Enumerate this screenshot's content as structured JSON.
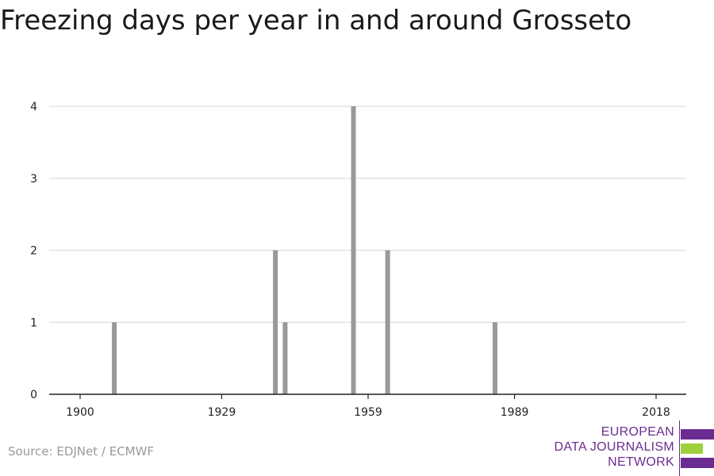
{
  "title": "Freezing days per year in and around Grosseto",
  "source": "Source: EDJNet / ECMWF",
  "logo": {
    "lines": [
      "EUROPEAN",
      "DATA JOURNALISM",
      "NETWORK"
    ],
    "colors": [
      "#6b2c91",
      "#9ed23c",
      "#6b2c91"
    ]
  },
  "colors": {
    "bar": "#999999",
    "grid": "#dddddd",
    "axis": "#222222"
  },
  "chart_data": {
    "type": "bar",
    "title": "Freezing days per year in and around Grosseto",
    "xlabel": "",
    "ylabel": "",
    "xlim": [
      1900,
      2018
    ],
    "ylim": [
      0,
      4
    ],
    "x_ticks": [
      1900,
      1929,
      1959,
      1989,
      2018
    ],
    "y_ticks": [
      0,
      1,
      2,
      3,
      4
    ],
    "grid": true,
    "x": [
      1907,
      1940,
      1942,
      1956,
      1963,
      1985
    ],
    "values": [
      1,
      2,
      1,
      4,
      2,
      1
    ]
  }
}
